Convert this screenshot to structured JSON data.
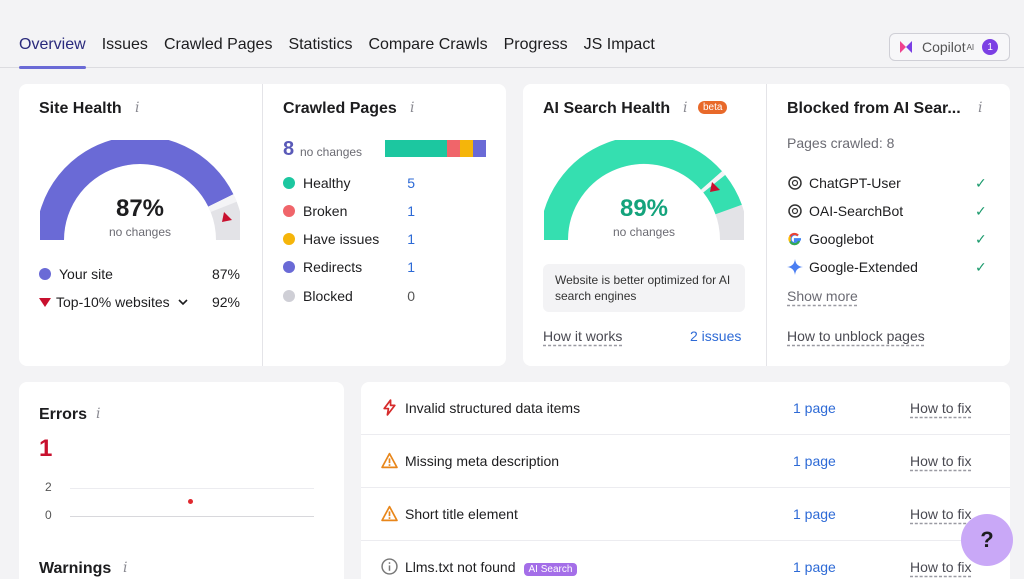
{
  "tabs": [
    "Overview",
    "Issues",
    "Crawled Pages",
    "Statistics",
    "Compare Crawls",
    "Progress",
    "JS Impact"
  ],
  "copilot": {
    "label": "Copilot",
    "sup": "AI",
    "badge": "1"
  },
  "site_health": {
    "title": "Site Health",
    "value": "87%",
    "sub": "no changes",
    "fill_fraction": 0.87,
    "your_site_label": "Your site",
    "your_site_value": "87%",
    "top_label": "Top-10% websites",
    "top_value": "92%"
  },
  "crawled_pages": {
    "title": "Crawled Pages",
    "count": "8",
    "sub": "no changes",
    "rows": [
      {
        "label": "Healthy",
        "value": "5",
        "color": "#1cc7a0"
      },
      {
        "label": "Broken",
        "value": "1",
        "color": "#f0656a"
      },
      {
        "label": "Have issues",
        "value": "1",
        "color": "#f5b50a"
      },
      {
        "label": "Redirects",
        "value": "1",
        "color": "#6a6ad6"
      },
      {
        "label": "Blocked",
        "value": "0",
        "color": "#cfcfd6"
      }
    ]
  },
  "ai_health": {
    "title": "AI Search Health",
    "beta": "beta",
    "value": "89%",
    "sub": "no changes",
    "fill_fraction": 0.89,
    "note": "Website is better optimized for AI search engines",
    "how_it_works": "How it works",
    "issues_link": "2 issues"
  },
  "blocked_ai": {
    "title": "Blocked from AI Sear...",
    "pages_crawled": "Pages crawled: 8",
    "agents": [
      "ChatGPT-User",
      "OAI-SearchBot",
      "Googlebot",
      "Google-Extended"
    ],
    "show_more": "Show more",
    "unblock": "How to unblock pages"
  },
  "errors": {
    "title": "Errors",
    "value": "1",
    "y_ticks": [
      "2",
      "0"
    ],
    "warnings_title": "Warnings"
  },
  "issues": [
    {
      "label": "Invalid structured data items",
      "count": "1 page",
      "fix": "How to fix",
      "icon": "error-bolt-icon"
    },
    {
      "label": "Missing meta description",
      "count": "1 page",
      "fix": "How to fix",
      "icon": "warning-icon"
    },
    {
      "label": "Short title element",
      "count": "1 page",
      "fix": "How to fix",
      "icon": "warning-icon"
    },
    {
      "label": "Llms.txt not found",
      "tag": "AI Search",
      "count": "1 page",
      "fix": "How to fix",
      "icon": "info-icon"
    }
  ],
  "help": "?"
}
